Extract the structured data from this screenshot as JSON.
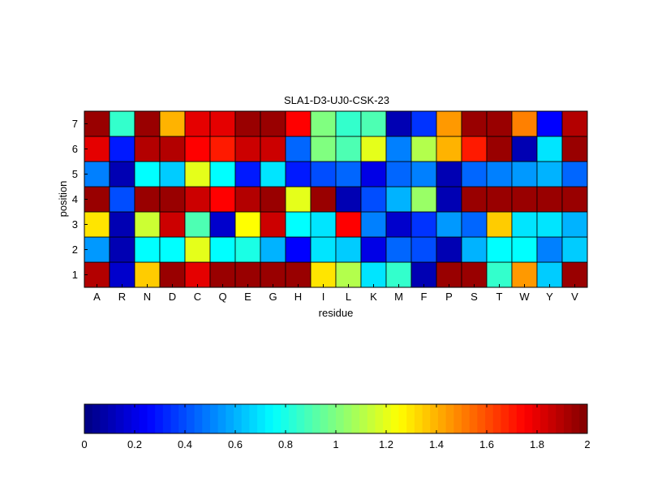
{
  "chart_data": {
    "type": "heatmap",
    "title": "SLA1-D3-UJ0-CSK-23",
    "xlabel": "residue",
    "ylabel": "position",
    "x_categories": [
      "A",
      "R",
      "N",
      "D",
      "C",
      "Q",
      "E",
      "G",
      "H",
      "I",
      "L",
      "K",
      "M",
      "F",
      "P",
      "S",
      "T",
      "W",
      "Y",
      "V"
    ],
    "y_categories": [
      "1",
      "2",
      "3",
      "4",
      "5",
      "6",
      "7"
    ],
    "values": [
      [
        1.9,
        0.15,
        1.35,
        1.95,
        1.8,
        1.95,
        1.95,
        1.95,
        1.95,
        1.3,
        1.1,
        0.7,
        0.85,
        0.1,
        1.95,
        1.95,
        0.85,
        1.45,
        0.65,
        1.95
      ],
      [
        0.55,
        0.1,
        0.75,
        0.75,
        1.2,
        0.75,
        0.8,
        0.6,
        0.25,
        0.7,
        0.65,
        0.2,
        0.45,
        0.4,
        0.1,
        0.6,
        0.75,
        0.75,
        0.5,
        0.65
      ],
      [
        1.3,
        0.1,
        1.15,
        1.85,
        0.9,
        0.15,
        1.25,
        1.85,
        0.75,
        0.7,
        1.75,
        0.5,
        0.15,
        0.35,
        0.55,
        0.45,
        1.35,
        0.7,
        0.7,
        0.6
      ],
      [
        1.95,
        0.4,
        1.95,
        1.95,
        1.85,
        1.75,
        1.9,
        1.95,
        1.2,
        1.95,
        0.1,
        0.4,
        0.6,
        1.05,
        0.1,
        1.95,
        1.95,
        1.95,
        1.95,
        1.95
      ],
      [
        0.5,
        0.1,
        0.75,
        0.65,
        1.2,
        0.75,
        0.3,
        0.7,
        0.3,
        0.4,
        0.45,
        0.2,
        0.45,
        0.5,
        0.1,
        0.45,
        0.5,
        0.55,
        0.6,
        0.45
      ],
      [
        1.8,
        0.3,
        1.9,
        1.9,
        1.75,
        1.7,
        1.85,
        1.85,
        0.45,
        1.0,
        0.9,
        1.2,
        0.5,
        1.1,
        1.4,
        1.7,
        1.95,
        0.1,
        0.7,
        1.95
      ],
      [
        1.95,
        0.85,
        1.95,
        1.4,
        1.8,
        1.8,
        1.95,
        1.95,
        1.75,
        1.0,
        0.85,
        0.9,
        0.1,
        0.35,
        1.45,
        1.95,
        1.95,
        1.5,
        0.25,
        1.9
      ]
    ],
    "colormap": "jet",
    "clim": [
      0,
      2
    ],
    "colorbar": {
      "ticks": [
        0,
        0.2,
        0.4,
        0.6,
        0.8,
        1,
        1.2,
        1.4,
        1.6,
        1.8,
        2
      ],
      "tick_labels": [
        "0",
        "0.2",
        "0.4",
        "0.6",
        "0.8",
        "1",
        "1.2",
        "1.4",
        "1.6",
        "1.8",
        "2"
      ],
      "orientation": "horizontal",
      "placement": "bottom"
    },
    "grid": false
  }
}
